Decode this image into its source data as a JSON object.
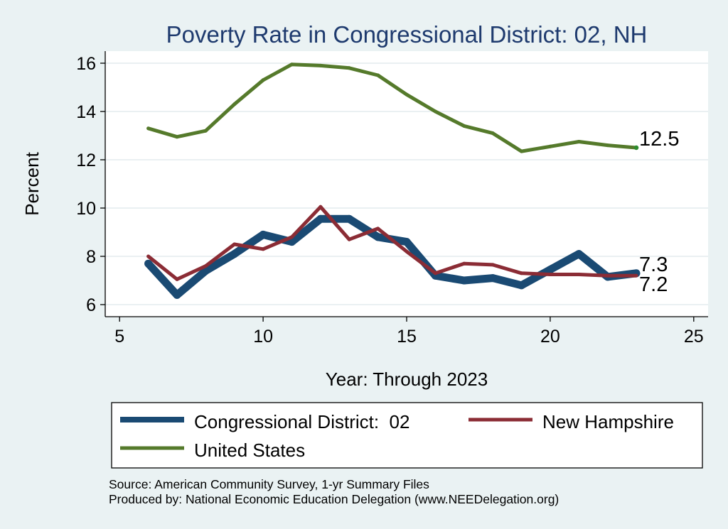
{
  "chart_data": {
    "type": "line",
    "title": "Poverty Rate in Congressional District:  02, NH",
    "xlabel": "Year: Through 2023",
    "ylabel": "Percent",
    "xlim": [
      4.5,
      25.5
    ],
    "ylim": [
      5.5,
      16.5
    ],
    "xticks": [
      5,
      10,
      15,
      20,
      25
    ],
    "yticks": [
      6,
      8,
      10,
      12,
      14,
      16
    ],
    "grid": true,
    "legend_position": "bottom",
    "series": [
      {
        "name": "Congressional District:  02",
        "color": "#1a4a73",
        "x": [
          6,
          7,
          8,
          9,
          10,
          11,
          12,
          13,
          14,
          15,
          16,
          17,
          18,
          19,
          20,
          21,
          22,
          23
        ],
        "values": [
          7.7,
          6.4,
          7.4,
          8.1,
          8.9,
          8.6,
          9.55,
          9.55,
          8.8,
          8.6,
          7.2,
          7.0,
          7.1,
          6.8,
          7.45,
          8.1,
          7.15,
          7.3
        ],
        "end_label": "7.3"
      },
      {
        "name": "New Hampshire",
        "color": "#8b2c35",
        "x": [
          6,
          7,
          8,
          9,
          10,
          11,
          12,
          13,
          14,
          15,
          16,
          17,
          18,
          19,
          20,
          21,
          22,
          23
        ],
        "values": [
          8.0,
          7.05,
          7.6,
          8.5,
          8.3,
          8.8,
          10.05,
          8.7,
          9.15,
          8.2,
          7.3,
          7.7,
          7.65,
          7.3,
          7.25,
          7.25,
          7.2,
          7.2
        ],
        "end_label": "7.2"
      },
      {
        "name": "United States",
        "color": "#557a2b",
        "x": [
          6,
          7,
          8,
          9,
          10,
          11,
          12,
          13,
          14,
          15,
          16,
          17,
          18,
          19,
          20,
          21,
          22,
          23
        ],
        "values": [
          13.3,
          12.95,
          13.2,
          14.3,
          15.3,
          15.95,
          15.9,
          15.8,
          15.5,
          14.7,
          14.0,
          13.4,
          13.1,
          12.35,
          12.55,
          12.75,
          12.6,
          12.5
        ],
        "end_label": "12.5"
      }
    ]
  },
  "legend": {
    "items": [
      "Congressional District:  02",
      "New Hampshire",
      "United States"
    ]
  },
  "footer": {
    "source": "Source: American Community Survey, 1-yr Summary Files",
    "produced": "Produced by: National Economic Education Delegation (www.NEEDelegation.org)"
  }
}
